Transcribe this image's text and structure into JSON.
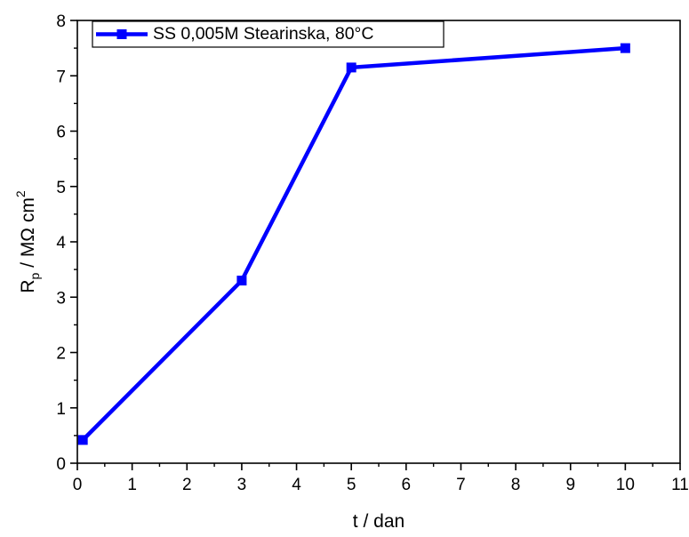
{
  "chart_data": {
    "type": "line",
    "xlabel": "t / dan",
    "ylabel": {
      "main": "R",
      "subscript": "p",
      "unit": " / MΩ cm",
      "superscript": "2"
    },
    "xlim": [
      0,
      11
    ],
    "ylim": [
      0,
      8
    ],
    "x_ticks": [
      0,
      1,
      2,
      3,
      4,
      5,
      6,
      7,
      8,
      9,
      10,
      11
    ],
    "y_ticks": [
      0,
      1,
      2,
      3,
      4,
      5,
      6,
      7,
      8
    ],
    "x_tick_labels": [
      "0",
      "1",
      "2",
      "3",
      "4",
      "5",
      "6",
      "7",
      "8",
      "9",
      "10",
      "11"
    ],
    "y_tick_labels": [
      "0",
      "1",
      "2",
      "3",
      "4",
      "5",
      "6",
      "7",
      "8"
    ],
    "grid": false,
    "legend_position": "top-left",
    "series": [
      {
        "name": "SS 0,005M Stearinska, 80°C",
        "color": "#0000ff",
        "marker": "square",
        "x": [
          0.1,
          3,
          5,
          10
        ],
        "y": [
          0.42,
          3.3,
          7.15,
          7.5
        ]
      }
    ]
  }
}
